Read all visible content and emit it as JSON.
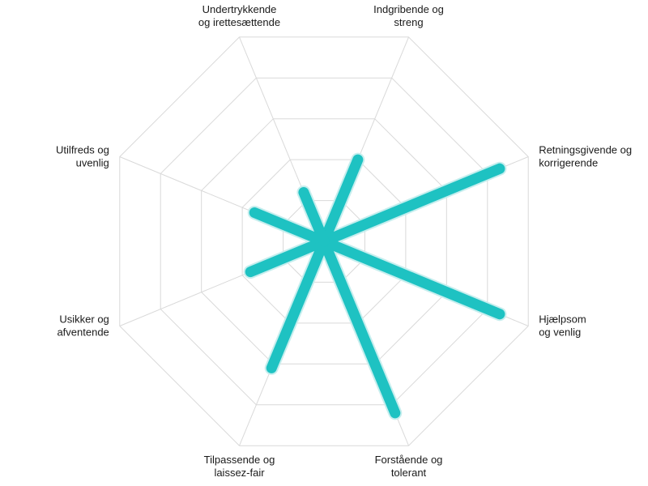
{
  "chart_data": {
    "type": "radar",
    "axes": [
      {
        "label": [
          "Indgribende og",
          "streng"
        ],
        "value": 2.0
      },
      {
        "label": [
          "Retningsgivende og",
          "korrigerende"
        ],
        "value": 4.3
      },
      {
        "label": [
          "Hjælpsom",
          "og venlig"
        ],
        "value": 4.3
      },
      {
        "label": [
          "Forstående og",
          "tolerant"
        ],
        "value": 4.2
      },
      {
        "label": [
          "Tilpassende og",
          "laissez-fair"
        ],
        "value": 3.1
      },
      {
        "label": [
          "Usikker og",
          "afventende"
        ],
        "value": 1.8
      },
      {
        "label": [
          "Utilfreds og",
          "uvenlig"
        ],
        "value": 1.7
      },
      {
        "label": [
          "Undertrykkende",
          "og irettesættende"
        ],
        "value": 1.2
      }
    ],
    "range": [
      0,
      5
    ],
    "rings": 5,
    "grid": true,
    "series_color": "#1ec2c2",
    "series_halo_color": "#c6eeee",
    "grid_color": "#d9d9d9"
  }
}
